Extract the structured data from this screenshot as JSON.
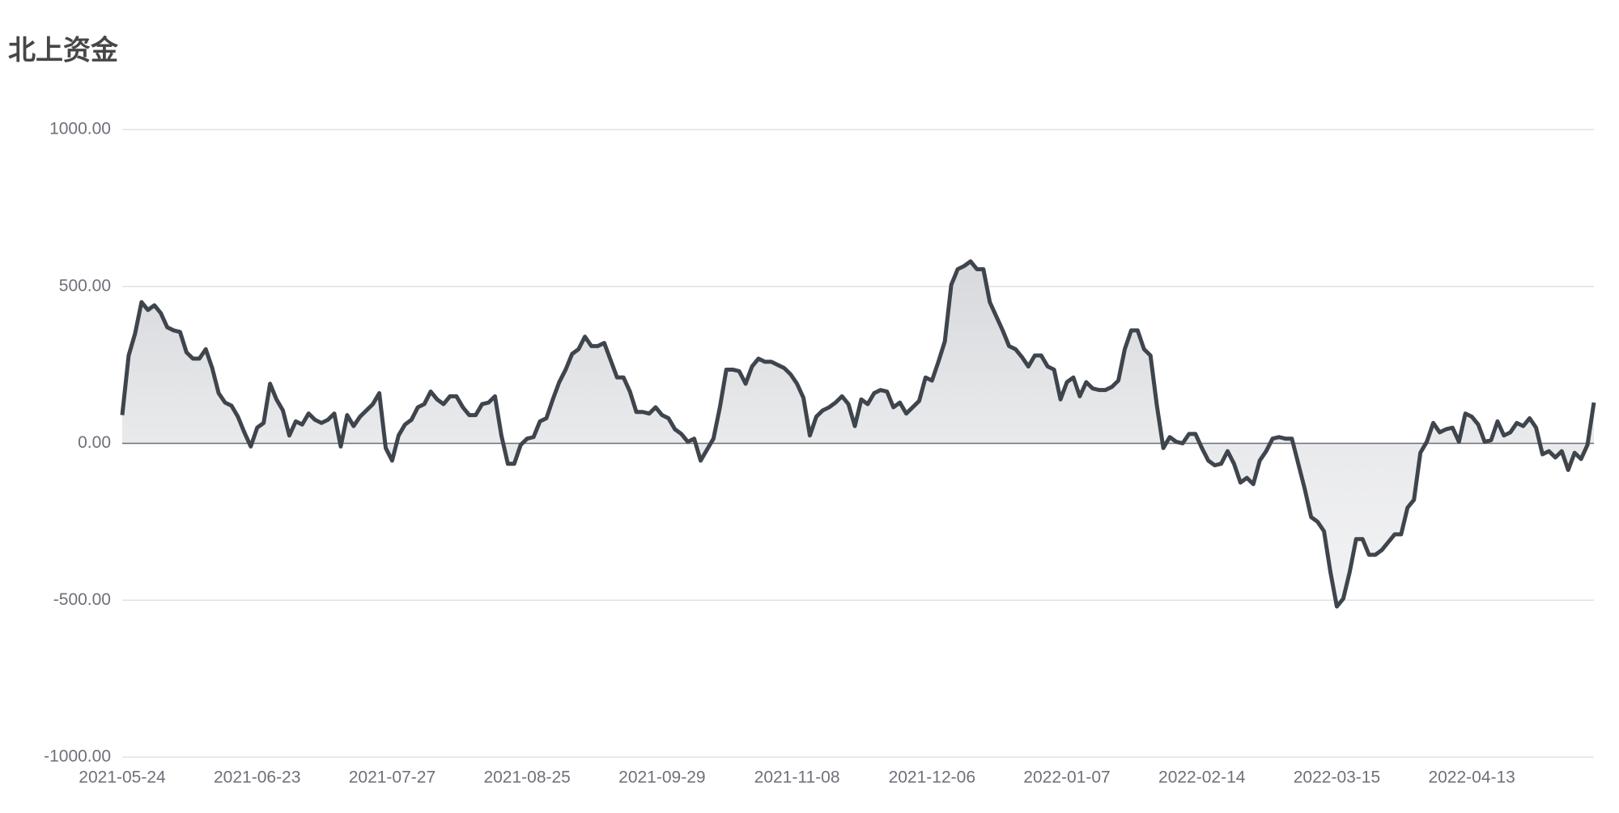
{
  "chart_data": {
    "type": "line",
    "title": "北上资金",
    "color": "#3f454d",
    "grid": true,
    "area": true,
    "categories": [
      "2021-05-24",
      null,
      null,
      null,
      null,
      null,
      null,
      null,
      null,
      null,
      null,
      null,
      null,
      null,
      null,
      null,
      null,
      null,
      null,
      null,
      null,
      "2021-06-23",
      null,
      null,
      null,
      null,
      null,
      null,
      null,
      null,
      null,
      null,
      null,
      null,
      null,
      null,
      null,
      null,
      null,
      null,
      null,
      null,
      "2021-07-27",
      null,
      null,
      null,
      null,
      null,
      null,
      null,
      null,
      null,
      null,
      null,
      null,
      null,
      null,
      null,
      null,
      null,
      null,
      null,
      null,
      "2021-08-25",
      null,
      null,
      null,
      null,
      null,
      null,
      null,
      null,
      null,
      null,
      null,
      null,
      null,
      null,
      null,
      null,
      null,
      null,
      null,
      null,
      "2021-09-29",
      null,
      null,
      null,
      null,
      null,
      null,
      null,
      null,
      null,
      null,
      null,
      null,
      null,
      null,
      null,
      null,
      null,
      null,
      null,
      null,
      "2021-11-08",
      null,
      null,
      null,
      null,
      null,
      null,
      null,
      null,
      null,
      null,
      null,
      null,
      null,
      null,
      null,
      null,
      null,
      null,
      null,
      null,
      "2021-12-06",
      null,
      null,
      null,
      null,
      null,
      null,
      null,
      null,
      null,
      null,
      null,
      null,
      null,
      null,
      null,
      null,
      null,
      null,
      null,
      null,
      "2022-01-07",
      null,
      null,
      null,
      null,
      null,
      null,
      null,
      null,
      null,
      null,
      null,
      null,
      null,
      null,
      null,
      null,
      null,
      null,
      null,
      null,
      "2022-02-14",
      null,
      null,
      null,
      null,
      null,
      null,
      null,
      null,
      null,
      null,
      null,
      null,
      null,
      null,
      null,
      null,
      null,
      null,
      null,
      null,
      "2022-03-15",
      null,
      null,
      null,
      null,
      null,
      null,
      null,
      null,
      null,
      null,
      null,
      null,
      null,
      null,
      null,
      null,
      null,
      null,
      null,
      null,
      "2022-04-13",
      null,
      null,
      null,
      null,
      null,
      null,
      null,
      null,
      null,
      null,
      null,
      null,
      null,
      null,
      null,
      null,
      null,
      null,
      null
    ],
    "values": [
      90,
      280,
      350,
      450,
      425,
      440,
      415,
      370,
      360,
      355,
      290,
      270,
      270,
      300,
      240,
      160,
      130,
      120,
      85,
      35,
      -10,
      50,
      65,
      190,
      140,
      105,
      25,
      70,
      60,
      95,
      75,
      65,
      75,
      95,
      -10,
      90,
      55,
      85,
      105,
      125,
      160,
      -15,
      -55,
      25,
      60,
      75,
      115,
      125,
      165,
      140,
      125,
      150,
      150,
      115,
      90,
      90,
      125,
      130,
      150,
      25,
      -65,
      -65,
      -5,
      15,
      20,
      70,
      80,
      140,
      195,
      235,
      285,
      300,
      340,
      310,
      310,
      320,
      265,
      210,
      210,
      165,
      100,
      100,
      95,
      115,
      90,
      80,
      45,
      30,
      5,
      15,
      -55,
      -20,
      15,
      115,
      235,
      235,
      230,
      190,
      245,
      270,
      260,
      260,
      250,
      240,
      220,
      190,
      145,
      25,
      85,
      105,
      115,
      130,
      150,
      125,
      55,
      140,
      125,
      160,
      170,
      165,
      115,
      130,
      95,
      115,
      135,
      210,
      200,
      260,
      325,
      505,
      555,
      565,
      580,
      555,
      555,
      450,
      405,
      360,
      310,
      300,
      275,
      245,
      280,
      280,
      245,
      235,
      140,
      195,
      210,
      150,
      195,
      175,
      170,
      170,
      180,
      200,
      300,
      360,
      360,
      300,
      280,
      120,
      -15,
      20,
      5,
      0,
      30,
      30,
      -15,
      -55,
      -70,
      -65,
      -25,
      -65,
      -125,
      -110,
      -130,
      -55,
      -25,
      15,
      20,
      15,
      15,
      -65,
      -145,
      -235,
      -250,
      -280,
      -410,
      -520,
      -495,
      -410,
      -305,
      -305,
      -355,
      -355,
      -340,
      -315,
      -290,
      -290,
      -205,
      -180,
      -30,
      5,
      65,
      35,
      45,
      50,
      5,
      95,
      85,
      60,
      5,
      10,
      70,
      25,
      35,
      65,
      55,
      80,
      50,
      -35,
      -25,
      -45,
      -25,
      -85,
      -30,
      -50,
      -5,
      130
    ],
    "ylim": [
      -1000,
      1000
    ],
    "yticks": [
      {
        "value": -1000,
        "label": "-1000.00"
      },
      {
        "value": -500,
        "label": "-500.00"
      },
      {
        "value": 0,
        "label": "0.00"
      },
      {
        "value": 500,
        "label": "500.00"
      },
      {
        "value": 1000,
        "label": "1000.00"
      }
    ]
  }
}
